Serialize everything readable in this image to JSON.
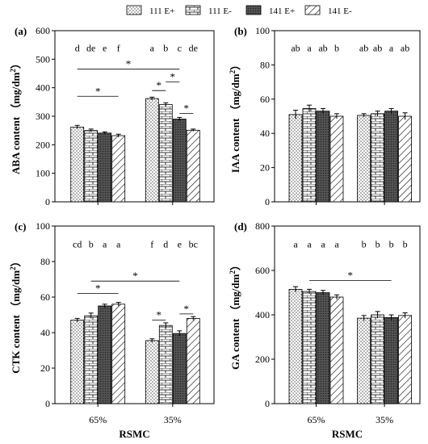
{
  "legend": [
    {
      "label": "111 E+",
      "pattern": "dots"
    },
    {
      "label": "111 E-",
      "pattern": "brick"
    },
    {
      "label": "141 E+",
      "pattern": "dense"
    },
    {
      "label": "141 E-",
      "pattern": "diag"
    }
  ],
  "groups": [
    "65%",
    "35%"
  ],
  "x_axis_title": "RSMC",
  "chart_data": [
    {
      "id": "a",
      "panel_label": "(a)",
      "type": "bar",
      "ylabel_main": "ABA content",
      "ylabel_unit": "（mg/dm",
      "ylabel_sup": "2",
      "ylabel_close": "）",
      "ylim": [
        0,
        600
      ],
      "yticks": [
        "0",
        "100",
        "200",
        "300",
        "400",
        "500",
        "600"
      ],
      "categories": [
        "65%",
        "35%"
      ],
      "series": [
        {
          "name": "111 E+",
          "values": [
            262,
            362
          ],
          "errors": [
            6,
            5
          ]
        },
        {
          "name": "111 E-",
          "values": [
            250,
            341
          ],
          "errors": [
            5,
            6
          ]
        },
        {
          "name": "141 E+",
          "values": [
            241,
            290
          ],
          "errors": [
            4,
            6
          ]
        },
        {
          "name": "141 E-",
          "values": [
            232,
            251
          ],
          "errors": [
            5,
            4
          ]
        }
      ],
      "letters": [
        [
          "d",
          "de",
          "e",
          "f"
        ],
        [
          "a",
          "b",
          "c",
          "de"
        ]
      ],
      "sig_lines": [
        {
          "x1": {
            "group": 0,
            "bar": 0
          },
          "x2": {
            "group": 0,
            "bar": 3
          },
          "y": 370,
          "label": "*"
        },
        {
          "x1": {
            "group": 0,
            "bar": 0
          },
          "x2": {
            "group": 1,
            "bar": 2
          },
          "y": 465,
          "label": "*"
        },
        {
          "x1": {
            "group": 1,
            "bar": 0
          },
          "x2": {
            "group": 1,
            "bar": 1
          },
          "y": 390,
          "label": "*"
        },
        {
          "x1": {
            "group": 1,
            "bar": 1
          },
          "x2": {
            "group": 1,
            "bar": 2
          },
          "y": 420,
          "label": "*"
        },
        {
          "x1": {
            "group": 1,
            "bar": 2
          },
          "x2": {
            "group": 1,
            "bar": 3
          },
          "y": 310,
          "label": "*"
        }
      ]
    },
    {
      "id": "b",
      "panel_label": "(b)",
      "type": "bar",
      "ylabel_main": "IAA content",
      "ylabel_unit": "（mg/dm",
      "ylabel_sup": "2",
      "ylabel_close": "）",
      "ylim": [
        0,
        100
      ],
      "yticks": [
        "0",
        "20",
        "40",
        "60",
        "80",
        "100"
      ],
      "categories": [
        "65%",
        "35%"
      ],
      "series": [
        {
          "name": "111 E+",
          "values": [
            51,
            50.5
          ],
          "errors": [
            2.5,
            1
          ]
        },
        {
          "name": "111 E-",
          "values": [
            54.5,
            51.5
          ],
          "errors": [
            2,
            1.5
          ]
        },
        {
          "name": "141 E+",
          "values": [
            53,
            53
          ],
          "errors": [
            1.5,
            1.5
          ]
        },
        {
          "name": "141 E-",
          "values": [
            50,
            50
          ],
          "errors": [
            1.5,
            2
          ]
        }
      ],
      "letters": [
        [
          "ab",
          "a",
          "ab",
          "b"
        ],
        [
          "ab",
          "ab",
          "a",
          "ab"
        ]
      ],
      "sig_lines": []
    },
    {
      "id": "c",
      "panel_label": "(c)",
      "type": "bar",
      "ylabel_main": "CTK content",
      "ylabel_unit": "（mg/dm",
      "ylabel_sup": "2",
      "ylabel_close": "）",
      "ylim": [
        0,
        100
      ],
      "yticks": [
        "0",
        "20",
        "40",
        "60",
        "80",
        "100"
      ],
      "categories": [
        "65%",
        "35%"
      ],
      "series": [
        {
          "name": "111 E+",
          "values": [
            47,
            35.5
          ],
          "errors": [
            1,
            1
          ]
        },
        {
          "name": "111 E-",
          "values": [
            49.5,
            44
          ],
          "errors": [
            1.5,
            1.5
          ]
        },
        {
          "name": "141 E+",
          "values": [
            55,
            39.5
          ],
          "errors": [
            1,
            1.5
          ]
        },
        {
          "name": "141 E-",
          "values": [
            56,
            48
          ],
          "errors": [
            1,
            1
          ]
        }
      ],
      "letters": [
        [
          "cd",
          "b",
          "a",
          "a"
        ],
        [
          "f",
          "d",
          "e",
          "bc"
        ]
      ],
      "sig_lines": [
        {
          "x1": {
            "group": 0,
            "bar": 0
          },
          "x2": {
            "group": 0,
            "bar": 3
          },
          "y": 62,
          "label": "*"
        },
        {
          "x1": {
            "group": 0,
            "bar": 1
          },
          "x2": {
            "group": 1,
            "bar": 2
          },
          "y": 69,
          "label": "*"
        },
        {
          "x1": {
            "group": 1,
            "bar": 0
          },
          "x2": {
            "group": 1,
            "bar": 1
          },
          "y": 47,
          "label": "*"
        },
        {
          "x1": {
            "group": 1,
            "bar": 2
          },
          "x2": {
            "group": 1,
            "bar": 3
          },
          "y": 50.5,
          "label": "*"
        }
      ]
    },
    {
      "id": "d",
      "panel_label": "(d)",
      "type": "bar",
      "ylabel_main": "GA content",
      "ylabel_unit": "（mg/dm",
      "ylabel_sup": "2",
      "ylabel_close": "）",
      "ylim": [
        0,
        800
      ],
      "yticks": [
        "0",
        "200",
        "400",
        "600",
        "800"
      ],
      "categories": [
        "65%",
        "35%"
      ],
      "series": [
        {
          "name": "111 E+",
          "values": [
            515,
            385
          ],
          "errors": [
            12,
            12
          ]
        },
        {
          "name": "111 E-",
          "values": [
            505,
            400
          ],
          "errors": [
            10,
            15
          ]
        },
        {
          "name": "141 E+",
          "values": [
            500,
            388
          ],
          "errors": [
            10,
            12
          ]
        },
        {
          "name": "141 E-",
          "values": [
            480,
            397
          ],
          "errors": [
            10,
            12
          ]
        }
      ],
      "letters": [
        [
          "a",
          "a",
          "a",
          "a"
        ],
        [
          "b",
          "b",
          "b",
          "b"
        ]
      ],
      "sig_lines": [
        {
          "x1": {
            "group": 0,
            "bar": 1
          },
          "x2": {
            "group": 1,
            "bar": 2
          },
          "y": 555,
          "label": "*"
        }
      ]
    }
  ]
}
